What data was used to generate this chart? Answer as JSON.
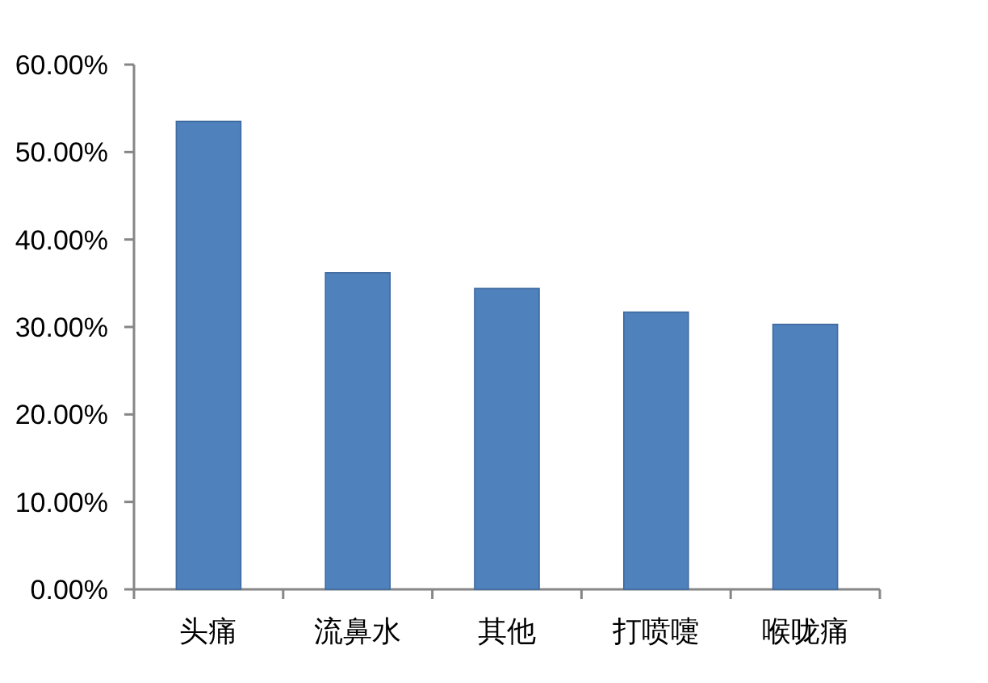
{
  "chart_data": {
    "type": "bar",
    "categories": [
      "头痛",
      "流鼻水",
      "其他",
      "打喷嚏",
      "喉咙痛"
    ],
    "values": [
      53.5,
      36.2,
      34.4,
      31.7,
      30.3
    ],
    "color": "#4f81bd",
    "ylim": [
      0,
      60
    ],
    "yticks": [
      {
        "value": 0,
        "label": "0.00%"
      },
      {
        "value": 10,
        "label": "10.00%"
      },
      {
        "value": 20,
        "label": "20.00%"
      },
      {
        "value": 30,
        "label": "30.00%"
      },
      {
        "value": 40,
        "label": "40.00%"
      },
      {
        "value": 50,
        "label": "50.00%"
      },
      {
        "value": 60,
        "label": "60.00%"
      }
    ]
  }
}
